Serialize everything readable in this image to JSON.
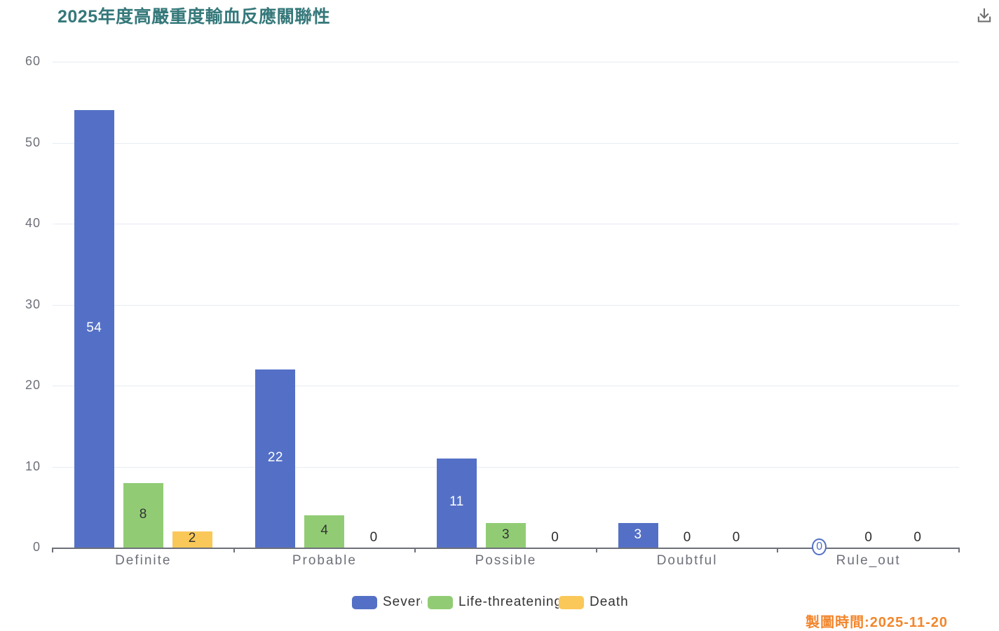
{
  "title": "2025年度高嚴重度輸血反應關聯性",
  "toolbar": {
    "download_icon": "download-into-tray"
  },
  "footer": {
    "timestamp_label": "製圖時間:2025-11-20"
  },
  "colors": {
    "title": "#35787a",
    "axis": "#6e7079",
    "grid": "#e6ebf2",
    "timestamp": "#f2862c",
    "zero_label": "#2b2b2b",
    "highlight_zero": "#5470c6"
  },
  "chart_data": {
    "type": "bar",
    "title": "2025年度高嚴重度輸血反應關聯性",
    "categories": [
      "Definite",
      "Probable",
      "Possible",
      "Doubtful",
      "Rule_out"
    ],
    "series": [
      {
        "name": "Severe",
        "color": "#5470c6",
        "label_color": "#ffffff",
        "values": [
          54,
          22,
          11,
          3,
          0
        ]
      },
      {
        "name": "Life-threatening",
        "color": "#91cc75",
        "label_color": "#333333",
        "values": [
          8,
          4,
          3,
          0,
          0
        ]
      },
      {
        "name": "Death",
        "color": "#fac858",
        "label_color": "#333333",
        "values": [
          2,
          0,
          0,
          0,
          0
        ]
      }
    ],
    "ylim": [
      0,
      60
    ],
    "yticks": [
      0,
      10,
      20,
      30,
      40,
      50,
      60
    ],
    "grid": true,
    "legend_position": "bottom",
    "value_labels": "inside",
    "zero_labels_shown_at_baseline": true,
    "highlighted_zero": {
      "series": "Severe",
      "category": "Rule_out"
    }
  }
}
